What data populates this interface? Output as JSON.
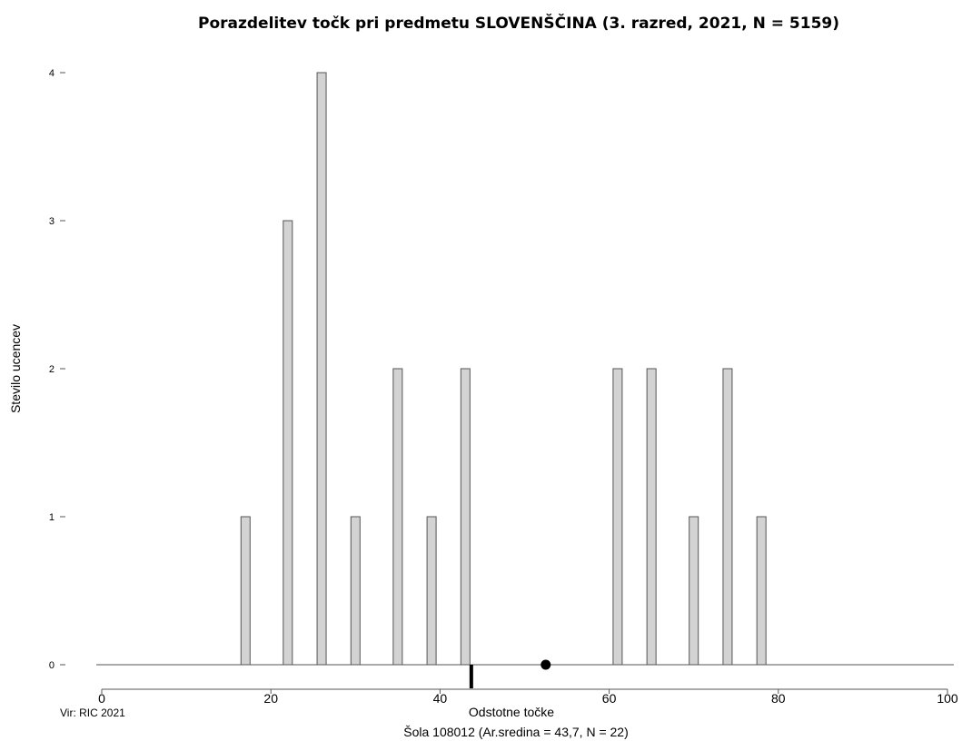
{
  "chart_data": {
    "type": "bar",
    "title": "Porazdelitev točk pri predmetu SLOVENŠČINA (3. razred, 2021, N = 5159)",
    "xlabel": "Odstotne točke",
    "ylabel": "Stevilo ucencev",
    "source": "Vir: RIC 2021",
    "footer": "Šola 108012 (Ar.sredina = 43,7, N = 22)",
    "xlim": [
      0,
      100
    ],
    "ylim": [
      0,
      4
    ],
    "x_ticks": [
      "0",
      "20",
      "40",
      "60",
      "80",
      "100"
    ],
    "y_ticks": [
      "0",
      "1",
      "2",
      "3",
      "4"
    ],
    "bar_color": "#d3d3d3",
    "series": [
      {
        "x": [
          17,
          22,
          26,
          30,
          35,
          39,
          43,
          61,
          65,
          70,
          74,
          78
        ],
        "values": [
          1,
          3,
          4,
          1,
          2,
          1,
          2,
          2,
          2,
          1,
          2,
          1
        ]
      }
    ],
    "markers": {
      "school_mean": 43.7,
      "national_mean": 52.5
    }
  }
}
